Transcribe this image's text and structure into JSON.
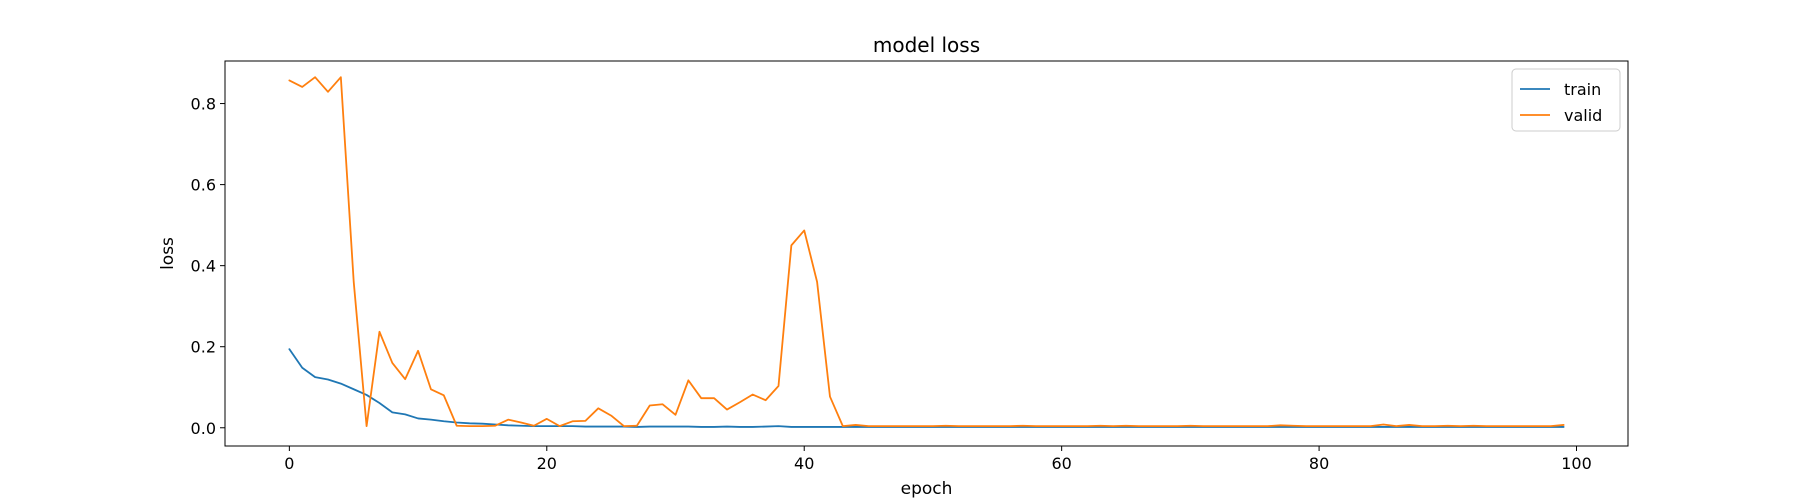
{
  "chart_data": {
    "type": "line",
    "title": "model loss",
    "xlabel": "epoch",
    "ylabel": "loss",
    "xlim": [
      -5,
      104
    ],
    "ylim": [
      -0.045,
      0.905
    ],
    "xticks": [
      0,
      20,
      40,
      60,
      80,
      100
    ],
    "yticks": [
      0.0,
      0.2,
      0.4,
      0.6,
      0.8
    ],
    "xtick_labels": [
      "0",
      "20",
      "40",
      "60",
      "80",
      "100"
    ],
    "ytick_labels": [
      "0.0",
      "0.2",
      "0.4",
      "0.6",
      "0.8"
    ],
    "grid": false,
    "legend_position": "top-right",
    "series": [
      {
        "name": "train",
        "color": "#1f77b4",
        "x": [
          0,
          1,
          2,
          3,
          4,
          5,
          6,
          7,
          8,
          9,
          10,
          11,
          12,
          13,
          14,
          15,
          16,
          17,
          18,
          19,
          20,
          21,
          22,
          23,
          24,
          25,
          26,
          27,
          28,
          29,
          30,
          31,
          32,
          33,
          34,
          35,
          36,
          37,
          38,
          39,
          40,
          41,
          42,
          43,
          44,
          45,
          46,
          47,
          48,
          49,
          50,
          51,
          52,
          53,
          54,
          55,
          56,
          57,
          58,
          59,
          60,
          61,
          62,
          63,
          64,
          65,
          66,
          67,
          68,
          69,
          70,
          71,
          72,
          73,
          74,
          75,
          76,
          77,
          78,
          79,
          80,
          81,
          82,
          83,
          84,
          85,
          86,
          87,
          88,
          89,
          90,
          91,
          92,
          93,
          94,
          95,
          96,
          97,
          98,
          99
        ],
        "values": [
          0.194,
          0.148,
          0.125,
          0.119,
          0.109,
          0.095,
          0.081,
          0.061,
          0.038,
          0.033,
          0.023,
          0.02,
          0.016,
          0.013,
          0.011,
          0.01,
          0.008,
          0.006,
          0.005,
          0.004,
          0.004,
          0.004,
          0.004,
          0.003,
          0.003,
          0.003,
          0.003,
          0.002,
          0.003,
          0.003,
          0.003,
          0.003,
          0.002,
          0.002,
          0.003,
          0.002,
          0.002,
          0.003,
          0.004,
          0.002,
          0.002,
          0.002,
          0.002,
          0.002,
          0.002,
          0.002,
          0.002,
          0.002,
          0.002,
          0.002,
          0.002,
          0.002,
          0.002,
          0.002,
          0.002,
          0.002,
          0.002,
          0.002,
          0.002,
          0.002,
          0.002,
          0.002,
          0.002,
          0.002,
          0.002,
          0.002,
          0.002,
          0.002,
          0.002,
          0.002,
          0.002,
          0.002,
          0.002,
          0.002,
          0.002,
          0.002,
          0.002,
          0.002,
          0.002,
          0.002,
          0.002,
          0.002,
          0.002,
          0.002,
          0.002,
          0.002,
          0.002,
          0.002,
          0.002,
          0.002,
          0.002,
          0.002,
          0.002,
          0.002,
          0.002,
          0.002,
          0.002,
          0.002,
          0.002,
          0.002
        ]
      },
      {
        "name": "valid",
        "color": "#ff7f0e",
        "x": [
          0,
          1,
          2,
          3,
          4,
          5,
          6,
          7,
          8,
          9,
          10,
          11,
          12,
          13,
          14,
          15,
          16,
          17,
          18,
          19,
          20,
          21,
          22,
          23,
          24,
          25,
          26,
          27,
          28,
          29,
          30,
          31,
          32,
          33,
          34,
          35,
          36,
          37,
          38,
          39,
          40,
          41,
          42,
          43,
          44,
          45,
          46,
          47,
          48,
          49,
          50,
          51,
          52,
          53,
          54,
          55,
          56,
          57,
          58,
          59,
          60,
          61,
          62,
          63,
          64,
          65,
          66,
          67,
          68,
          69,
          70,
          71,
          72,
          73,
          74,
          75,
          76,
          77,
          78,
          79,
          80,
          81,
          82,
          83,
          84,
          85,
          86,
          87,
          88,
          89,
          90,
          91,
          92,
          93,
          94,
          95,
          96,
          97,
          98,
          99
        ],
        "values": [
          0.857,
          0.841,
          0.865,
          0.829,
          0.865,
          0.36,
          0.004,
          0.237,
          0.16,
          0.12,
          0.19,
          0.095,
          0.08,
          0.005,
          0.004,
          0.004,
          0.005,
          0.02,
          0.013,
          0.005,
          0.022,
          0.004,
          0.016,
          0.017,
          0.048,
          0.03,
          0.004,
          0.005,
          0.055,
          0.058,
          0.032,
          0.117,
          0.073,
          0.073,
          0.045,
          0.063,
          0.082,
          0.068,
          0.103,
          0.45,
          0.487,
          0.36,
          0.077,
          0.004,
          0.007,
          0.004,
          0.004,
          0.004,
          0.004,
          0.004,
          0.004,
          0.005,
          0.004,
          0.004,
          0.004,
          0.004,
          0.004,
          0.005,
          0.004,
          0.004,
          0.004,
          0.004,
          0.004,
          0.005,
          0.004,
          0.005,
          0.004,
          0.004,
          0.004,
          0.004,
          0.005,
          0.004,
          0.004,
          0.004,
          0.004,
          0.004,
          0.004,
          0.006,
          0.005,
          0.004,
          0.004,
          0.004,
          0.004,
          0.004,
          0.004,
          0.008,
          0.004,
          0.007,
          0.004,
          0.004,
          0.005,
          0.004,
          0.005,
          0.004,
          0.004,
          0.004,
          0.004,
          0.004,
          0.004,
          0.007
        ]
      }
    ]
  }
}
